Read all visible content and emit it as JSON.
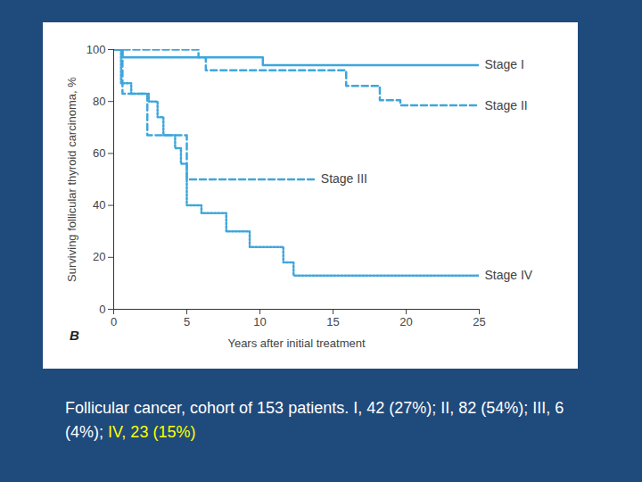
{
  "chart_data": {
    "type": "line",
    "panel_label": "B",
    "xlabel": "Years after initial treatment",
    "ylabel": "Surviving follicular thyroid carcinoma, %",
    "xlim": [
      0,
      25
    ],
    "xticks": [
      0,
      5,
      10,
      15,
      20,
      25
    ],
    "ylim": [
      0,
      100
    ],
    "yticks": [
      0,
      20,
      40,
      60,
      80,
      100
    ],
    "grid": false,
    "series": [
      {
        "name": "Stage I",
        "color": "#3ea6dc",
        "line_style": "solid",
        "x": [
          0,
          0.6,
          10.2,
          25
        ],
        "values": [
          100,
          97,
          94,
          94
        ]
      },
      {
        "name": "Stage II",
        "color": "#3ea6dc",
        "line_style": "dashed",
        "x": [
          0,
          5.8,
          6.3,
          15.9,
          18.2,
          19.6,
          25
        ],
        "values": [
          100,
          97,
          92,
          86,
          80.5,
          78.5,
          78.5
        ]
      },
      {
        "name": "Stage III",
        "color": "#3ea6dc",
        "line_style": "dashed",
        "x": [
          0,
          0.6,
          2.3,
          5,
          13.8
        ],
        "values": [
          100,
          83,
          67,
          50,
          50
        ]
      },
      {
        "name": "Stage IV",
        "color": "#3ea6dc",
        "line_style": "dotted",
        "x": [
          0,
          0.5,
          1.2,
          2.4,
          3,
          3.4,
          4.2,
          4.6,
          5,
          6,
          7.7,
          9.3,
          11.6,
          12.3,
          25
        ],
        "values": [
          100,
          87,
          83,
          80,
          74,
          67,
          62,
          56,
          40,
          37,
          30,
          24,
          18,
          13,
          13
        ]
      }
    ],
    "caption": {
      "text": "Follicular cancer, cohort of 153 patients. I, 42 (27%); II, 82 (54%); III, 6 (4%); ",
      "highlight": "IV, 23 (15%)"
    }
  }
}
